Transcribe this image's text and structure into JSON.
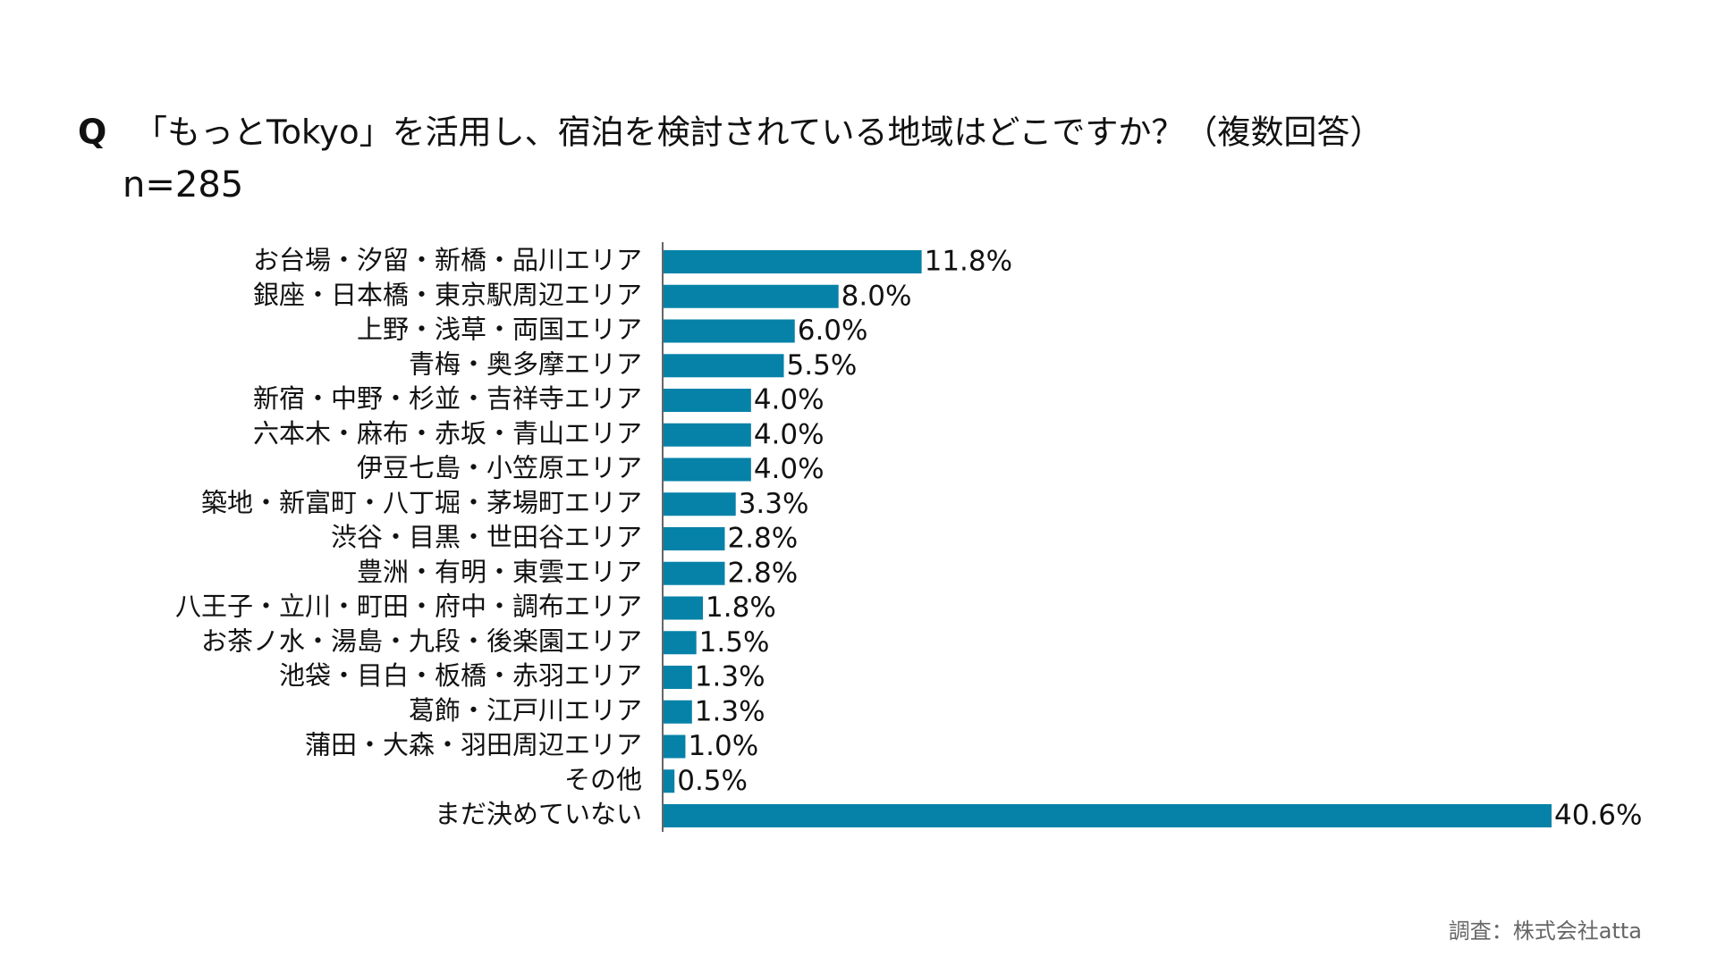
{
  "chart_data": {
    "type": "barh",
    "title_marker": "Q",
    "title": "「もっとTokyo」を活用し、宿泊を検討されている地域はどこですか？（複数回答）",
    "subtitle": "n=285",
    "source": "調査：株式会社atta",
    "color": "#0682a8",
    "categories": [
      "お台場・汐留・新橋・品川エリア",
      "銀座・日本橋・東京駅周辺エリア",
      "上野・浅草・両国エリア",
      "青梅・奥多摩エリア",
      "新宿・中野・杉並・吉祥寺エリア",
      "六本木・麻布・赤坂・青山エリア",
      "伊豆七島・小笠原エリア",
      "築地・新富町・八丁堀・茅場町エリア",
      "渋谷・目黒・世田谷エリア",
      "豊洲・有明・東雲エリア",
      "八王子・立川・町田・府中・調布エリア",
      "お茶ノ水・湯島・九段・後楽園エリア",
      "池袋・目白・板橋・赤羽エリア",
      "葛飾・江戸川エリア",
      "蒲田・大森・羽田周辺エリア",
      "その他",
      "まだ決めていない"
    ],
    "values": [
      11.8,
      8.0,
      6.0,
      5.5,
      4.0,
      4.0,
      4.0,
      3.3,
      2.8,
      2.8,
      1.8,
      1.5,
      1.3,
      1.3,
      1.0,
      0.5,
      40.6
    ],
    "value_labels": [
      "11.8%",
      "8.0%",
      "6.0%",
      "5.5%",
      "4.0%",
      "4.0%",
      "4.0%",
      "3.3%",
      "2.8%",
      "2.8%",
      "1.8%",
      "1.5%",
      "1.3%",
      "1.3%",
      "1.0%",
      "0.5%",
      "40.6%"
    ]
  }
}
